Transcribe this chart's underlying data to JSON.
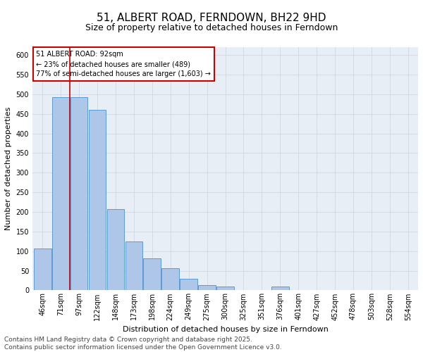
{
  "title": "51, ALBERT ROAD, FERNDOWN, BH22 9HD",
  "subtitle": "Size of property relative to detached houses in Ferndown",
  "xlabel": "Distribution of detached houses by size in Ferndown",
  "ylabel": "Number of detached properties",
  "categories": [
    "46sqm",
    "71sqm",
    "97sqm",
    "122sqm",
    "148sqm",
    "173sqm",
    "198sqm",
    "224sqm",
    "249sqm",
    "275sqm",
    "300sqm",
    "325sqm",
    "351sqm",
    "376sqm",
    "401sqm",
    "427sqm",
    "452sqm",
    "478sqm",
    "503sqm",
    "528sqm",
    "554sqm"
  ],
  "values": [
    107,
    492,
    492,
    460,
    207,
    125,
    82,
    57,
    30,
    13,
    10,
    0,
    0,
    10,
    0,
    0,
    0,
    0,
    0,
    0,
    0
  ],
  "bar_color": "#aec6e8",
  "bar_edge_color": "#5b9bd5",
  "grid_color": "#d0d8e4",
  "background_color": "#e8eef5",
  "vline_color": "#cc0000",
  "annotation_text": "51 ALBERT ROAD: 92sqm\n← 23% of detached houses are smaller (489)\n77% of semi-detached houses are larger (1,603) →",
  "annotation_box_color": "#cc0000",
  "footer": "Contains HM Land Registry data © Crown copyright and database right 2025.\nContains public sector information licensed under the Open Government Licence v3.0.",
  "ylim": [
    0,
    620
  ],
  "yticks": [
    0,
    50,
    100,
    150,
    200,
    250,
    300,
    350,
    400,
    450,
    500,
    550,
    600
  ],
  "title_fontsize": 11,
  "subtitle_fontsize": 9,
  "axis_label_fontsize": 8,
  "tick_fontsize": 7,
  "footer_fontsize": 6.5
}
